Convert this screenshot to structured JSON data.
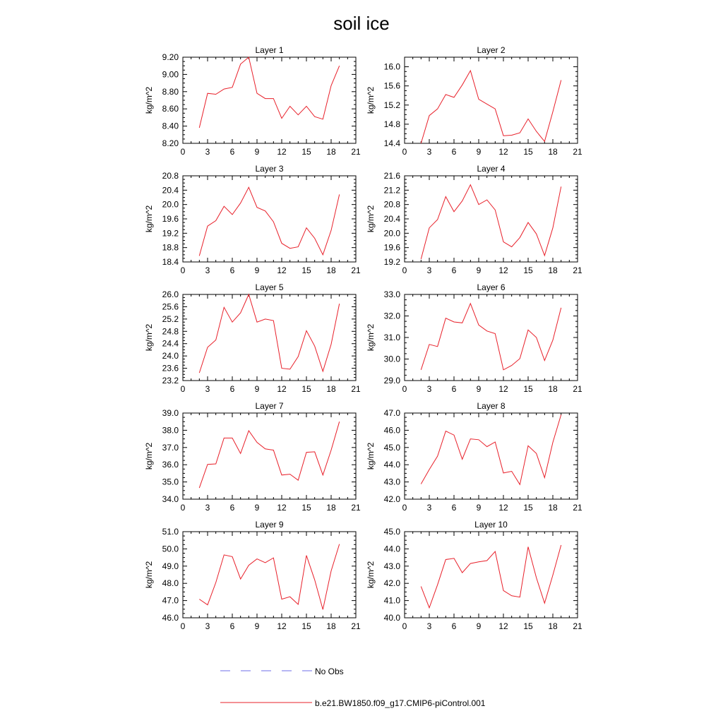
{
  "title": "soil ice",
  "legend": {
    "entries": [
      {
        "label": "No Obs",
        "color": "#6f6fe8",
        "dash": "dashed"
      },
      {
        "label": "b.e21.BW1850.f09_g17.CMIP6-piControl.001",
        "color": "#e8202a",
        "dash": "solid"
      }
    ]
  },
  "chart_data": [
    {
      "type": "line",
      "title": "Layer 1",
      "ylabel": "kg/m^2",
      "xlim": [
        0,
        21
      ],
      "ylim": [
        8.2,
        9.2
      ],
      "xticks": [
        0,
        3,
        6,
        9,
        12,
        15,
        18,
        21
      ],
      "xtick_labels": [
        "0",
        "3",
        "6",
        "9",
        "12",
        "15",
        "18",
        "21"
      ],
      "yticks": [
        8.2,
        8.4,
        8.6,
        8.8,
        9.0,
        9.2
      ],
      "ytick_labels": [
        "8.20",
        "8.40",
        "8.60",
        "8.80",
        "9.00",
        "9.20"
      ],
      "series": [
        {
          "name": "b.e21.BW1850.f09_g17.CMIP6-piControl.001",
          "color": "#e8202a",
          "x": [
            2,
            3,
            4,
            5,
            6,
            7,
            8,
            9,
            10,
            11,
            12,
            13,
            14,
            15,
            16,
            17,
            18,
            19
          ],
          "y": [
            8.38,
            8.78,
            8.77,
            8.83,
            8.85,
            9.12,
            9.2,
            8.78,
            8.72,
            8.72,
            8.49,
            8.63,
            8.53,
            8.63,
            8.51,
            8.48,
            8.87,
            9.1
          ]
        }
      ]
    },
    {
      "type": "line",
      "title": "Layer 2",
      "ylabel": "kg/m^2",
      "xlim": [
        0,
        21
      ],
      "ylim": [
        14.4,
        16.2
      ],
      "xticks": [
        0,
        3,
        6,
        9,
        12,
        15,
        18,
        21
      ],
      "xtick_labels": [
        "0",
        "3",
        "6",
        "9",
        "12",
        "15",
        "18",
        "21"
      ],
      "yticks": [
        14.4,
        14.8,
        15.2,
        15.6,
        16.0
      ],
      "ytick_labels": [
        "14.4",
        "14.8",
        "15.2",
        "15.6",
        "16.0"
      ],
      "series": [
        {
          "name": "b.e21.BW1850.f09_g17.CMIP6-piControl.001",
          "color": "#e8202a",
          "x": [
            2,
            3,
            4,
            5,
            6,
            7,
            8,
            9,
            10,
            11,
            12,
            13,
            14,
            15,
            16,
            17,
            18,
            19
          ],
          "y": [
            14.4,
            14.98,
            15.12,
            15.42,
            15.36,
            15.62,
            15.92,
            15.32,
            15.22,
            15.12,
            14.56,
            14.57,
            14.62,
            14.91,
            14.65,
            14.44,
            15.06,
            15.72
          ]
        }
      ]
    },
    {
      "type": "line",
      "title": "Layer 3",
      "ylabel": "kg/m^2",
      "xlim": [
        0,
        21
      ],
      "ylim": [
        18.4,
        20.8
      ],
      "xticks": [
        0,
        3,
        6,
        9,
        12,
        15,
        18,
        21
      ],
      "xtick_labels": [
        "0",
        "3",
        "6",
        "9",
        "12",
        "15",
        "18",
        "21"
      ],
      "yticks": [
        18.4,
        18.8,
        19.2,
        19.6,
        20.0,
        20.4,
        20.8
      ],
      "ytick_labels": [
        "18.4",
        "18.8",
        "19.2",
        "19.6",
        "20.0",
        "20.4",
        "20.8"
      ],
      "series": [
        {
          "name": "b.e21.BW1850.f09_g17.CMIP6-piControl.001",
          "color": "#e8202a",
          "x": [
            2,
            3,
            4,
            5,
            6,
            7,
            8,
            9,
            10,
            11,
            12,
            13,
            14,
            15,
            16,
            17,
            18,
            19
          ],
          "y": [
            18.57,
            19.4,
            19.55,
            19.95,
            19.72,
            20.04,
            20.48,
            19.92,
            19.82,
            19.52,
            18.92,
            18.78,
            18.82,
            19.35,
            19.06,
            18.6,
            19.28,
            20.28
          ]
        }
      ]
    },
    {
      "type": "line",
      "title": "Layer 4",
      "ylabel": "kg/m^2",
      "xlim": [
        0,
        21
      ],
      "ylim": [
        19.2,
        21.6
      ],
      "xticks": [
        0,
        3,
        6,
        9,
        12,
        15,
        18,
        21
      ],
      "xtick_labels": [
        "0",
        "3",
        "6",
        "9",
        "12",
        "15",
        "18",
        "21"
      ],
      "yticks": [
        19.2,
        19.6,
        20.0,
        20.4,
        20.8,
        21.2,
        21.6
      ],
      "ytick_labels": [
        "19.2",
        "19.6",
        "20.0",
        "20.4",
        "20.8",
        "21.2",
        "21.6"
      ],
      "series": [
        {
          "name": "b.e21.BW1850.f09_g17.CMIP6-piControl.001",
          "color": "#e8202a",
          "x": [
            2,
            3,
            4,
            5,
            6,
            7,
            8,
            9,
            10,
            11,
            12,
            13,
            14,
            15,
            16,
            17,
            18,
            19
          ],
          "y": [
            19.28,
            20.15,
            20.38,
            21.02,
            20.6,
            20.9,
            21.35,
            20.8,
            20.93,
            20.65,
            19.76,
            19.62,
            19.88,
            20.3,
            19.98,
            19.38,
            20.15,
            21.3
          ]
        }
      ]
    },
    {
      "type": "line",
      "title": "Layer 5",
      "ylabel": "kg/m^2",
      "xlim": [
        0,
        21
      ],
      "ylim": [
        23.2,
        26.0
      ],
      "xticks": [
        0,
        3,
        6,
        9,
        12,
        15,
        18,
        21
      ],
      "xtick_labels": [
        "0",
        "3",
        "6",
        "9",
        "12",
        "15",
        "18",
        "21"
      ],
      "yticks": [
        23.2,
        23.6,
        24.0,
        24.4,
        24.8,
        25.2,
        25.6,
        26.0
      ],
      "ytick_labels": [
        "23.2",
        "23.6",
        "24.0",
        "24.4",
        "24.8",
        "25.2",
        "25.6",
        "26.0"
      ],
      "series": [
        {
          "name": "b.e21.BW1850.f09_g17.CMIP6-piControl.001",
          "color": "#e8202a",
          "x": [
            2,
            3,
            4,
            5,
            6,
            7,
            8,
            9,
            10,
            11,
            12,
            13,
            14,
            15,
            16,
            17,
            18,
            19
          ],
          "y": [
            23.45,
            24.28,
            24.52,
            25.58,
            25.1,
            25.4,
            26.0,
            25.1,
            25.2,
            25.15,
            23.6,
            23.57,
            23.98,
            24.82,
            24.32,
            23.5,
            24.38,
            25.7
          ]
        }
      ]
    },
    {
      "type": "line",
      "title": "Layer 6",
      "ylabel": "kg/m^2",
      "xlim": [
        0,
        21
      ],
      "ylim": [
        29.0,
        33.0
      ],
      "xticks": [
        0,
        3,
        6,
        9,
        12,
        15,
        18,
        21
      ],
      "xtick_labels": [
        "0",
        "3",
        "6",
        "9",
        "12",
        "15",
        "18",
        "21"
      ],
      "yticks": [
        29.0,
        30.0,
        31.0,
        32.0,
        33.0
      ],
      "ytick_labels": [
        "29.0",
        "30.0",
        "31.0",
        "32.0",
        "33.0"
      ],
      "series": [
        {
          "name": "b.e21.BW1850.f09_g17.CMIP6-piControl.001",
          "color": "#e8202a",
          "x": [
            2,
            3,
            4,
            5,
            6,
            7,
            8,
            9,
            10,
            11,
            12,
            13,
            14,
            15,
            16,
            17,
            18,
            19
          ],
          "y": [
            29.5,
            30.68,
            30.58,
            31.9,
            31.72,
            31.68,
            32.58,
            31.58,
            31.3,
            31.18,
            29.5,
            29.7,
            30.02,
            31.35,
            31.0,
            29.93,
            30.88,
            32.38
          ]
        }
      ]
    },
    {
      "type": "line",
      "title": "Layer 7",
      "ylabel": "kg/m^2",
      "xlim": [
        0,
        21
      ],
      "ylim": [
        34.0,
        39.0
      ],
      "xticks": [
        0,
        3,
        6,
        9,
        12,
        15,
        18,
        21
      ],
      "xtick_labels": [
        "0",
        "3",
        "6",
        "9",
        "12",
        "15",
        "18",
        "21"
      ],
      "yticks": [
        34.0,
        35.0,
        36.0,
        37.0,
        38.0,
        39.0
      ],
      "ytick_labels": [
        "34.0",
        "35.0",
        "36.0",
        "37.0",
        "38.0",
        "39.0"
      ],
      "series": [
        {
          "name": "b.e21.BW1850.f09_g17.CMIP6-piControl.001",
          "color": "#e8202a",
          "x": [
            2,
            3,
            4,
            5,
            6,
            7,
            8,
            9,
            10,
            11,
            12,
            13,
            14,
            15,
            16,
            17,
            18,
            19
          ],
          "y": [
            34.65,
            36.02,
            36.05,
            37.55,
            37.55,
            36.65,
            37.98,
            37.3,
            36.92,
            36.85,
            35.4,
            35.45,
            35.1,
            36.72,
            36.75,
            35.4,
            36.85,
            38.5
          ]
        }
      ]
    },
    {
      "type": "line",
      "title": "Layer 8",
      "ylabel": "kg/m^2",
      "xlim": [
        0,
        21
      ],
      "ylim": [
        42.0,
        47.0
      ],
      "xticks": [
        0,
        3,
        6,
        9,
        12,
        15,
        18,
        21
      ],
      "xtick_labels": [
        "0",
        "3",
        "6",
        "9",
        "12",
        "15",
        "18",
        "21"
      ],
      "yticks": [
        42.0,
        43.0,
        44.0,
        45.0,
        46.0,
        47.0
      ],
      "ytick_labels": [
        "42.0",
        "43.0",
        "44.0",
        "45.0",
        "46.0",
        "47.0"
      ],
      "series": [
        {
          "name": "b.e21.BW1850.f09_g17.CMIP6-piControl.001",
          "color": "#e8202a",
          "x": [
            2,
            3,
            4,
            5,
            6,
            7,
            8,
            9,
            10,
            11,
            12,
            13,
            14,
            15,
            16,
            17,
            18,
            19
          ],
          "y": [
            42.88,
            43.72,
            44.5,
            45.95,
            45.72,
            44.32,
            45.5,
            45.45,
            45.05,
            45.32,
            43.52,
            43.62,
            42.85,
            45.1,
            44.65,
            43.25,
            45.3,
            46.9
          ]
        }
      ]
    },
    {
      "type": "line",
      "title": "Layer 9",
      "ylabel": "kg/m^2",
      "xlim": [
        0,
        21
      ],
      "ylim": [
        46.0,
        51.0
      ],
      "xticks": [
        0,
        3,
        6,
        9,
        12,
        15,
        18,
        21
      ],
      "xtick_labels": [
        "0",
        "3",
        "6",
        "9",
        "12",
        "15",
        "18",
        "21"
      ],
      "yticks": [
        46.0,
        47.0,
        48.0,
        49.0,
        50.0,
        51.0
      ],
      "ytick_labels": [
        "46.0",
        "47.0",
        "48.0",
        "49.0",
        "50.0",
        "51.0"
      ],
      "series": [
        {
          "name": "b.e21.BW1850.f09_g17.CMIP6-piControl.001",
          "color": "#e8202a",
          "x": [
            2,
            3,
            4,
            5,
            6,
            7,
            8,
            9,
            10,
            11,
            12,
            13,
            14,
            15,
            16,
            17,
            18,
            19
          ],
          "y": [
            47.08,
            46.75,
            48.05,
            49.65,
            49.55,
            48.25,
            49.05,
            49.42,
            49.2,
            49.48,
            47.08,
            47.22,
            46.78,
            49.62,
            48.2,
            46.48,
            48.72,
            50.28
          ]
        }
      ]
    },
    {
      "type": "line",
      "title": "Layer 10",
      "ylabel": "kg/m^2",
      "xlim": [
        0,
        21
      ],
      "ylim": [
        40.0,
        45.0
      ],
      "xticks": [
        0,
        3,
        6,
        9,
        12,
        15,
        18,
        21
      ],
      "xtick_labels": [
        "0",
        "3",
        "6",
        "9",
        "12",
        "15",
        "18",
        "21"
      ],
      "yticks": [
        40.0,
        41.0,
        42.0,
        43.0,
        44.0,
        45.0
      ],
      "ytick_labels": [
        "40.0",
        "41.0",
        "42.0",
        "43.0",
        "44.0",
        "45.0"
      ],
      "series": [
        {
          "name": "b.e21.BW1850.f09_g17.CMIP6-piControl.001",
          "color": "#e8202a",
          "x": [
            2,
            3,
            4,
            5,
            6,
            7,
            8,
            9,
            10,
            11,
            12,
            13,
            14,
            15,
            16,
            17,
            18,
            19
          ],
          "y": [
            41.82,
            40.58,
            41.92,
            43.38,
            43.45,
            42.62,
            43.15,
            43.25,
            43.32,
            43.85,
            41.58,
            41.28,
            41.2,
            44.12,
            42.32,
            40.85,
            42.48,
            44.22
          ]
        }
      ]
    }
  ]
}
